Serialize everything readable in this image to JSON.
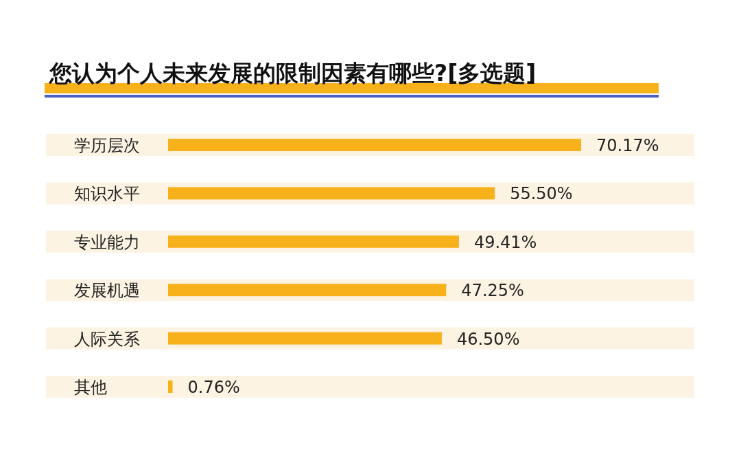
{
  "chart_data": {
    "type": "bar",
    "orientation": "horizontal",
    "title": "您认为个人未来发展的限制因素有哪些?[多选题]",
    "categories": [
      "学历层次",
      "知识水平",
      "专业能力",
      "发展机遇",
      "人际关系",
      "其他"
    ],
    "values": [
      70.17,
      55.5,
      49.41,
      47.25,
      46.5,
      0.76
    ],
    "value_labels": [
      "70.17%",
      "55.50%",
      "49.41%",
      "47.25%",
      "46.50%",
      "0.76%"
    ],
    "color": "#f7b21b"
  }
}
